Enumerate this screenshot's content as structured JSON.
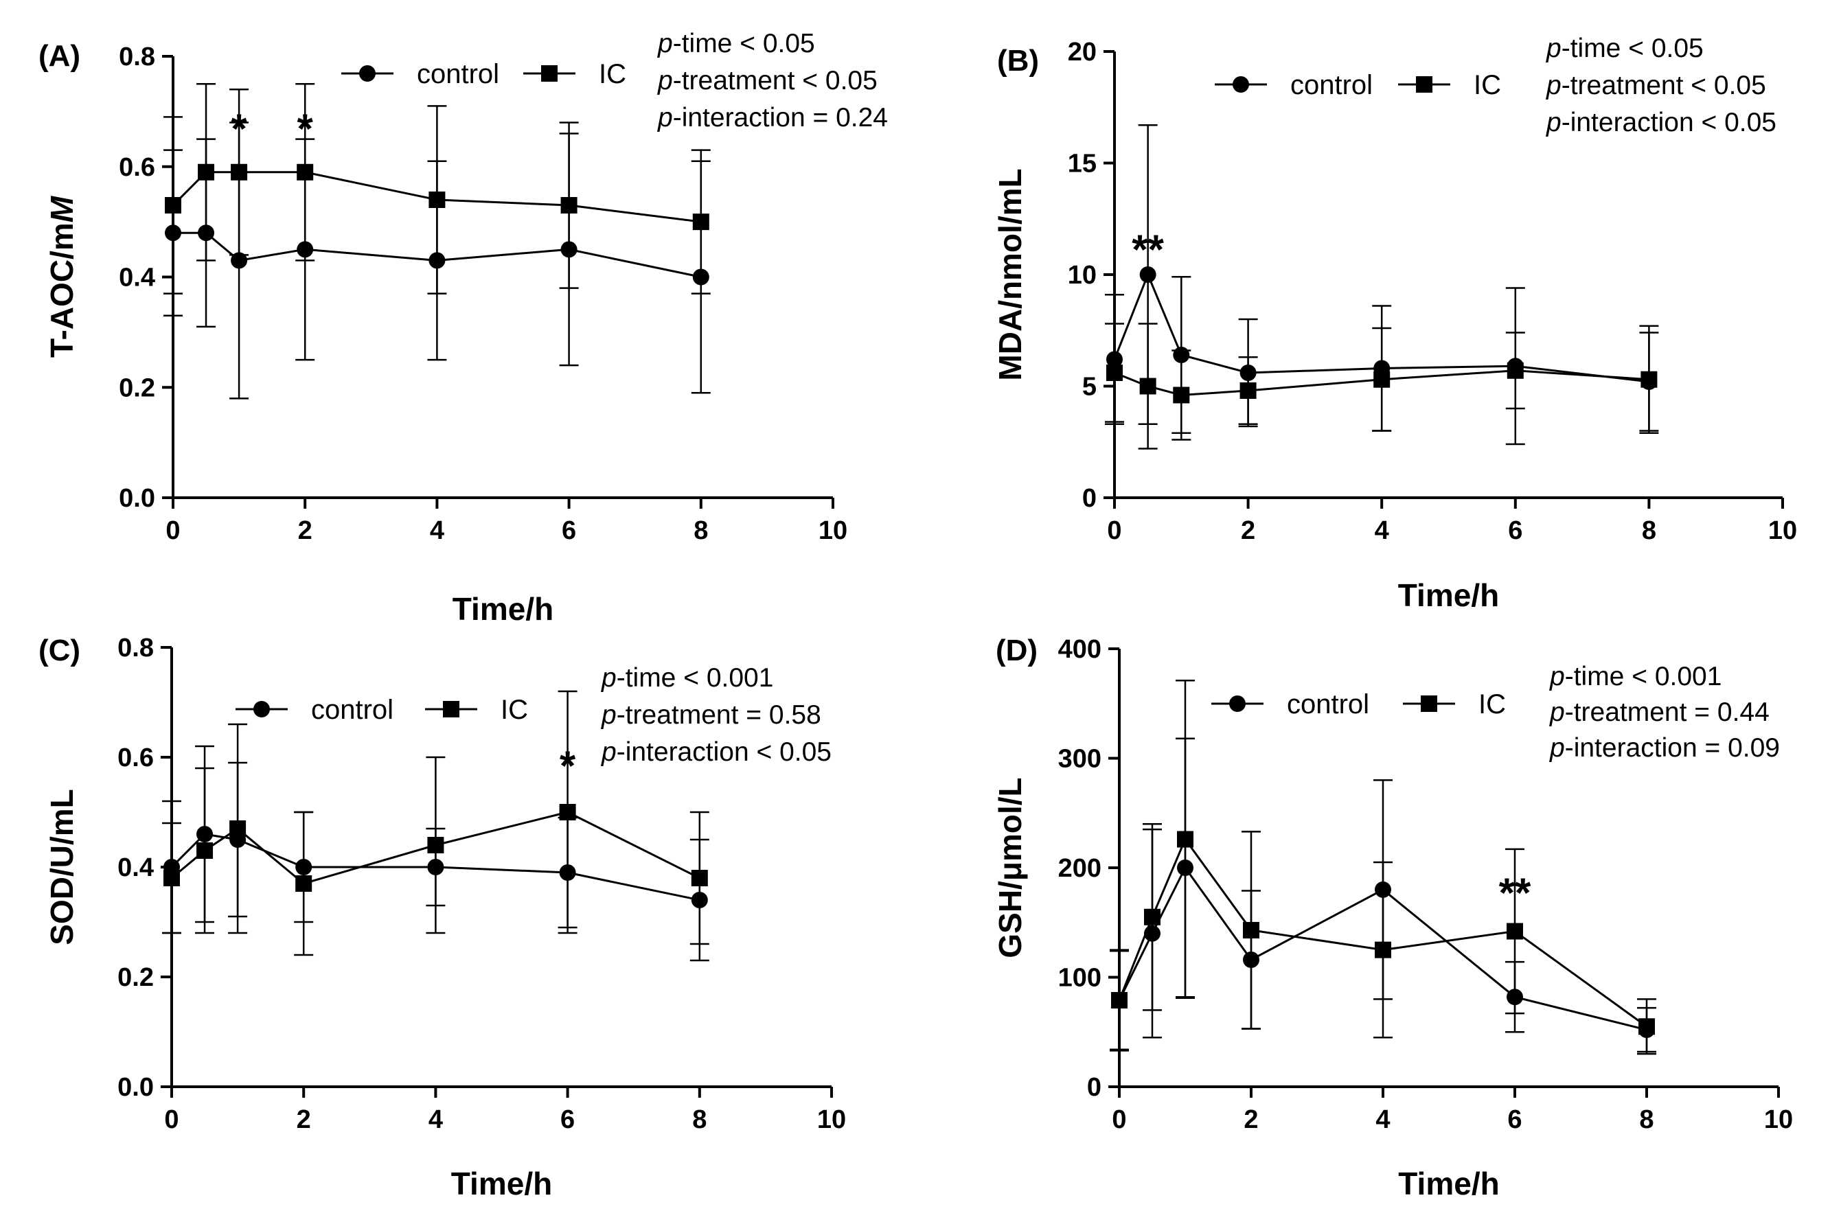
{
  "chart_data": [
    {
      "type": "line",
      "panel": "(A)",
      "xlabel": "Time/h",
      "ylabel": "T-AOC/mM",
      "ylabel_parts": [
        "T-AOC/m",
        "M"
      ],
      "xlim": [
        0,
        10
      ],
      "ylim": [
        0,
        0.8
      ],
      "xticks": [
        0,
        2,
        4,
        6,
        8,
        10
      ],
      "yticks": [
        0.0,
        0.2,
        0.4,
        0.6,
        0.8
      ],
      "ytick_labels": [
        "0.0",
        "0.2",
        "0.4",
        "0.6",
        "0.8"
      ],
      "legend": [
        "control",
        "IC"
      ],
      "stats": [
        {
          "italic": "p",
          "text": "-time < 0.05"
        },
        {
          "italic": "p",
          "text": "-treatment < 0.05"
        },
        {
          "italic": "p",
          "text": "-interaction = 0.24"
        }
      ],
      "series": [
        {
          "name": "control",
          "marker": "circle",
          "x": [
            0,
            0.5,
            1,
            2,
            4,
            6,
            8
          ],
          "y": [
            0.48,
            0.48,
            0.43,
            0.45,
            0.43,
            0.45,
            0.4
          ],
          "err": [
            0.15,
            0.17,
            0.25,
            0.2,
            0.18,
            0.21,
            0.21
          ]
        },
        {
          "name": "IC",
          "marker": "square",
          "x": [
            0,
            0.5,
            1,
            2,
            4,
            6,
            8
          ],
          "y": [
            0.53,
            0.59,
            0.59,
            0.59,
            0.54,
            0.53,
            0.5
          ],
          "err": [
            0.16,
            0.16,
            0.15,
            0.16,
            0.17,
            0.15,
            0.13
          ]
        }
      ],
      "significance": [
        {
          "x": 1,
          "label": "*"
        },
        {
          "x": 2,
          "label": "*"
        }
      ]
    },
    {
      "type": "line",
      "panel": "(B)",
      "xlabel": "Time/h",
      "ylabel": "MDA/nmol/mL",
      "xlim": [
        0,
        10
      ],
      "ylim": [
        0,
        20
      ],
      "xticks": [
        0,
        2,
        4,
        6,
        8,
        10
      ],
      "yticks": [
        0,
        5,
        10,
        15,
        20
      ],
      "ytick_labels": [
        "0",
        "5",
        "10",
        "15",
        "20"
      ],
      "legend": [
        "control",
        "IC"
      ],
      "stats": [
        {
          "italic": "p",
          "text": "-time < 0.05"
        },
        {
          "italic": "p",
          "text": "-treatment < 0.05"
        },
        {
          "italic": "p",
          "text": "-interaction < 0.05"
        }
      ],
      "series": [
        {
          "name": "control",
          "marker": "circle",
          "x": [
            0,
            0.5,
            1,
            2,
            4,
            6,
            8
          ],
          "y": [
            6.2,
            10.0,
            6.4,
            5.6,
            5.8,
            5.9,
            5.2
          ],
          "err": [
            2.9,
            6.7,
            3.5,
            2.4,
            2.8,
            3.5,
            2.2
          ]
        },
        {
          "name": "IC",
          "marker": "square",
          "x": [
            0,
            0.5,
            1,
            2,
            4,
            6,
            8
          ],
          "y": [
            5.6,
            5.0,
            4.6,
            4.8,
            5.3,
            5.7,
            5.3
          ],
          "err": [
            2.2,
            2.8,
            2.0,
            1.5,
            2.3,
            1.7,
            2.4
          ]
        }
      ],
      "significance": [
        {
          "x": 0.5,
          "label": "**"
        }
      ]
    },
    {
      "type": "line",
      "panel": "(C)",
      "xlabel": "Time/h",
      "ylabel": "SOD/U/mL",
      "xlim": [
        0,
        10
      ],
      "ylim": [
        0,
        0.8
      ],
      "xticks": [
        0,
        2,
        4,
        6,
        8,
        10
      ],
      "yticks": [
        0.0,
        0.2,
        0.4,
        0.6,
        0.8
      ],
      "ytick_labels": [
        "0.0",
        "0.2",
        "0.4",
        "0.6",
        "0.8"
      ],
      "legend": [
        "control",
        "IC"
      ],
      "stats": [
        {
          "italic": "p",
          "text": "-time < 0.001"
        },
        {
          "italic": "p",
          "text": "-treatment = 0.58"
        },
        {
          "italic": "p",
          "text": "-interaction < 0.05"
        }
      ],
      "series": [
        {
          "name": "control",
          "marker": "circle",
          "x": [
            0,
            0.5,
            1,
            2,
            4,
            6,
            8
          ],
          "y": [
            0.4,
            0.46,
            0.45,
            0.4,
            0.4,
            0.39,
            0.34
          ],
          "err": [
            0.12,
            0.16,
            0.14,
            0.1,
            0.07,
            0.1,
            0.11
          ]
        },
        {
          "name": "IC",
          "marker": "square",
          "x": [
            0,
            0.5,
            1,
            2,
            4,
            6,
            8
          ],
          "y": [
            0.38,
            0.43,
            0.47,
            0.37,
            0.44,
            0.5,
            0.38
          ],
          "err": [
            0.1,
            0.15,
            0.19,
            0.13,
            0.16,
            0.22,
            0.12
          ]
        }
      ],
      "significance": [
        {
          "x": 6,
          "label": "*"
        }
      ]
    },
    {
      "type": "line",
      "panel": "(D)",
      "xlabel": "Time/h",
      "ylabel": "GSH/μmol/L",
      "xlim": [
        0,
        10
      ],
      "ylim": [
        0,
        400
      ],
      "xticks": [
        0,
        2,
        4,
        6,
        8,
        10
      ],
      "yticks": [
        0,
        100,
        200,
        300,
        400
      ],
      "ytick_labels": [
        "0",
        "100",
        "200",
        "300",
        "400"
      ],
      "legend": [
        "control",
        "IC"
      ],
      "stats": [
        {
          "italic": "p",
          "text": "-time < 0.001"
        },
        {
          "italic": "p",
          "text": "-treatment = 0.44"
        },
        {
          "italic": "p",
          "text": "-interaction = 0.09"
        }
      ],
      "series": [
        {
          "name": "control",
          "marker": "circle",
          "x": [
            0,
            0.5,
            1,
            2,
            4,
            6,
            8
          ],
          "y": [
            79,
            140,
            200,
            116,
            180,
            82,
            52
          ],
          "err": [
            45,
            95,
            118,
            63,
            100,
            32,
            20
          ]
        },
        {
          "name": "IC",
          "marker": "square",
          "x": [
            0,
            0.5,
            1,
            2,
            4,
            6,
            8
          ],
          "y": [
            79,
            155,
            226,
            143,
            125,
            142,
            55
          ],
          "err": [
            46,
            85,
            145,
            90,
            80,
            75,
            25
          ]
        }
      ],
      "significance": [
        {
          "x": 6,
          "label": "**"
        }
      ]
    }
  ]
}
